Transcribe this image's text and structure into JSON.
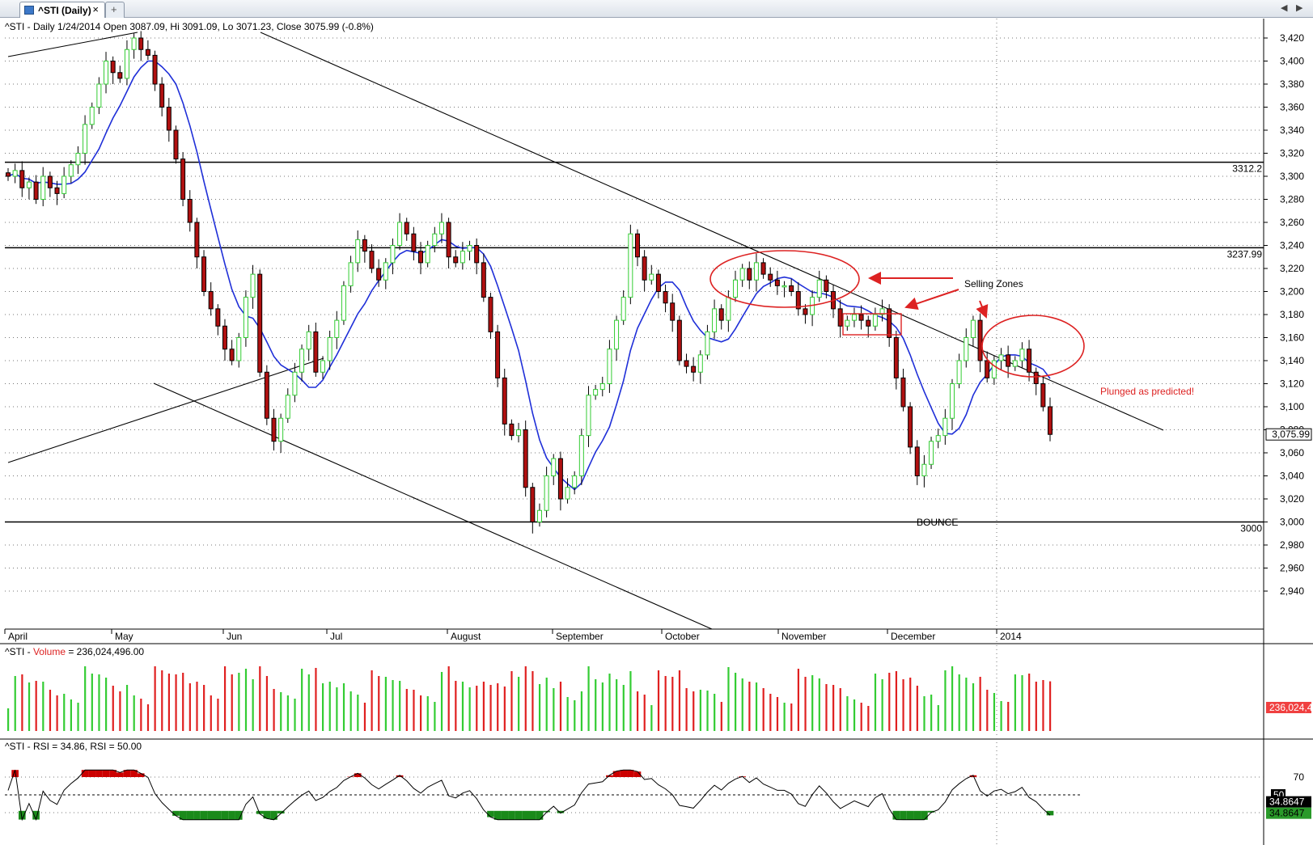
{
  "window": {
    "tab_label": "^STI (Daily)",
    "close_glyph": "×",
    "new_tab_glyph": "+",
    "nav_left": "◀",
    "nav_right": "▶"
  },
  "colors": {
    "up": "#33cc33",
    "down": "#b01010",
    "ma": "#1f2fd8",
    "annot": "#dd2222",
    "hline": "#000000",
    "rsi_fill": "#1a8a1a",
    "rsi_over": "#cc0000"
  },
  "price_panel": {
    "header": "^STI - Daily 1/24/2014 Open 3087.09, Hi 3091.09, Lo 3071.23, Close 3075.99 (-0.8%)",
    "ytick_labels": [
      "3,420",
      "3,400",
      "3,380",
      "3,360",
      "3,340",
      "3,320",
      "3,300",
      "3,280",
      "3,260",
      "3,240",
      "3,220",
      "3,200",
      "3,180",
      "3,160",
      "3,140",
      "3,120",
      "3,100",
      "3,080",
      "3,060",
      "3,040",
      "3,020",
      "3,000",
      "2,980",
      "2,960",
      "2,940"
    ],
    "last_price_label": "3,075.99",
    "month_labels": [
      "April",
      "May",
      "Jun",
      "Jul",
      "August",
      "September",
      "October",
      "November",
      "December",
      "2014"
    ],
    "hlines": [
      {
        "value": 3312.2,
        "label": "3312.2"
      },
      {
        "value": 3237.99,
        "label": "3237.99"
      },
      {
        "value": 3000,
        "label": "3000"
      }
    ],
    "annotations": {
      "selling_zones": "Selling Zones",
      "bounce": "BOUNCE",
      "plunged": "Plunged as predicted!"
    }
  },
  "volume_panel": {
    "header_prefix": "^STI - ",
    "header_series": "Volume",
    "header_value": " = 236,024,496.00",
    "last_label": "236,024,4"
  },
  "rsi_panel": {
    "header": "^STI - RSI = 34.86, RSI = 50.00",
    "tick_70": "70",
    "box_50": "50",
    "last_value": "34.8647",
    "last_value2": "34.8647"
  },
  "chart_data": {
    "type": "candlestick",
    "title": "^STI - Daily",
    "ylim": [
      2930,
      3430
    ],
    "ma_series_name": "Moving Average",
    "series": [
      {
        "name": "^STI",
        "closes_path": [
          {
            "m": "Apr",
            "c": 3300
          },
          {
            "m": "Apr",
            "c": 3305
          },
          {
            "m": "Apr",
            "c": 3290
          },
          {
            "m": "Apr",
            "c": 3295
          },
          {
            "m": "Apr",
            "c": 3280
          },
          {
            "m": "Apr",
            "c": 3300
          },
          {
            "m": "Apr",
            "c": 3290
          },
          {
            "m": "Apr",
            "c": 3285
          },
          {
            "m": "Apr",
            "c": 3300
          },
          {
            "m": "Apr",
            "c": 3310
          },
          {
            "m": "Apr",
            "c": 3320
          },
          {
            "m": "May",
            "c": 3345
          },
          {
            "m": "May",
            "c": 3360
          },
          {
            "m": "May",
            "c": 3380
          },
          {
            "m": "May",
            "c": 3400
          },
          {
            "m": "May",
            "c": 3390
          },
          {
            "m": "May",
            "c": 3385
          },
          {
            "m": "May",
            "c": 3410
          },
          {
            "m": "May",
            "c": 3420
          },
          {
            "m": "May",
            "c": 3410
          },
          {
            "m": "May",
            "c": 3405
          },
          {
            "m": "May",
            "c": 3380
          },
          {
            "m": "May",
            "c": 3360
          },
          {
            "m": "May",
            "c": 3340
          },
          {
            "m": "May",
            "c": 3315
          },
          {
            "m": "Jun",
            "c": 3280
          },
          {
            "m": "Jun",
            "c": 3260
          },
          {
            "m": "Jun",
            "c": 3230
          },
          {
            "m": "Jun",
            "c": 3200
          },
          {
            "m": "Jun",
            "c": 3185
          },
          {
            "m": "Jun",
            "c": 3170
          },
          {
            "m": "Jun",
            "c": 3150
          },
          {
            "m": "Jun",
            "c": 3140
          },
          {
            "m": "Jun",
            "c": 3160
          },
          {
            "m": "Jun",
            "c": 3195
          },
          {
            "m": "Jun",
            "c": 3215
          },
          {
            "m": "Jun",
            "c": 3130
          },
          {
            "m": "Jun",
            "c": 3090
          },
          {
            "m": "Jun",
            "c": 3070
          },
          {
            "m": "Jun",
            "c": 3090
          },
          {
            "m": "Jun",
            "c": 3110
          },
          {
            "m": "Jun",
            "c": 3130
          },
          {
            "m": "Jul",
            "c": 3150
          },
          {
            "m": "Jul",
            "c": 3165
          },
          {
            "m": "Jul",
            "c": 3130
          },
          {
            "m": "Jul",
            "c": 3140
          },
          {
            "m": "Jul",
            "c": 3160
          },
          {
            "m": "Jul",
            "c": 3175
          },
          {
            "m": "Jul",
            "c": 3205
          },
          {
            "m": "Jul",
            "c": 3225
          },
          {
            "m": "Jul",
            "c": 3245
          },
          {
            "m": "Jul",
            "c": 3235
          },
          {
            "m": "Jul",
            "c": 3220
          },
          {
            "m": "Jul",
            "c": 3210
          },
          {
            "m": "Jul",
            "c": 3225
          },
          {
            "m": "Jul",
            "c": 3240
          },
          {
            "m": "Jul",
            "c": 3260
          },
          {
            "m": "Jul",
            "c": 3250
          },
          {
            "m": "Jul",
            "c": 3235
          },
          {
            "m": "Aug",
            "c": 3225
          },
          {
            "m": "Aug",
            "c": 3240
          },
          {
            "m": "Aug",
            "c": 3250
          },
          {
            "m": "Aug",
            "c": 3260
          },
          {
            "m": "Aug",
            "c": 3230
          },
          {
            "m": "Aug",
            "c": 3225
          },
          {
            "m": "Aug",
            "c": 3235
          },
          {
            "m": "Aug",
            "c": 3240
          },
          {
            "m": "Aug",
            "c": 3225
          },
          {
            "m": "Aug",
            "c": 3195
          },
          {
            "m": "Aug",
            "c": 3165
          },
          {
            "m": "Aug",
            "c": 3125
          },
          {
            "m": "Aug",
            "c": 3085
          },
          {
            "m": "Aug",
            "c": 3075
          },
          {
            "m": "Aug",
            "c": 3080
          },
          {
            "m": "Aug",
            "c": 3030
          },
          {
            "m": "Aug",
            "c": 3000
          },
          {
            "m": "Sep",
            "c": 3010
          },
          {
            "m": "Sep",
            "c": 3040
          },
          {
            "m": "Sep",
            "c": 3055
          },
          {
            "m": "Sep",
            "c": 3020
          },
          {
            "m": "Sep",
            "c": 3030
          },
          {
            "m": "Sep",
            "c": 3040
          },
          {
            "m": "Sep",
            "c": 3075
          },
          {
            "m": "Sep",
            "c": 3110
          },
          {
            "m": "Sep",
            "c": 3115
          },
          {
            "m": "Sep",
            "c": 3120
          },
          {
            "m": "Sep",
            "c": 3150
          },
          {
            "m": "Sep",
            "c": 3175
          },
          {
            "m": "Sep",
            "c": 3195
          },
          {
            "m": "Sep",
            "c": 3250
          },
          {
            "m": "Sep",
            "c": 3230
          },
          {
            "m": "Sep",
            "c": 3210
          },
          {
            "m": "Sep",
            "c": 3215
          },
          {
            "m": "Sep",
            "c": 3200
          },
          {
            "m": "Oct",
            "c": 3190
          },
          {
            "m": "Oct",
            "c": 3175
          },
          {
            "m": "Oct",
            "c": 3140
          },
          {
            "m": "Oct",
            "c": 3135
          },
          {
            "m": "Oct",
            "c": 3130
          },
          {
            "m": "Oct",
            "c": 3145
          },
          {
            "m": "Oct",
            "c": 3165
          },
          {
            "m": "Oct",
            "c": 3185
          },
          {
            "m": "Oct",
            "c": 3175
          },
          {
            "m": "Oct",
            "c": 3195
          },
          {
            "m": "Oct",
            "c": 3210
          },
          {
            "m": "Oct",
            "c": 3220
          },
          {
            "m": "Oct",
            "c": 3210
          },
          {
            "m": "Oct",
            "c": 3225
          },
          {
            "m": "Oct",
            "c": 3215
          },
          {
            "m": "Nov",
            "c": 3210
          },
          {
            "m": "Nov",
            "c": 3205
          },
          {
            "m": "Nov",
            "c": 3205
          },
          {
            "m": "Nov",
            "c": 3200
          },
          {
            "m": "Nov",
            "c": 3185
          },
          {
            "m": "Nov",
            "c": 3180
          },
          {
            "m": "Nov",
            "c": 3195
          },
          {
            "m": "Nov",
            "c": 3210
          },
          {
            "m": "Nov",
            "c": 3200
          },
          {
            "m": "Nov",
            "c": 3185
          },
          {
            "m": "Nov",
            "c": 3170
          },
          {
            "m": "Nov",
            "c": 3175
          },
          {
            "m": "Nov",
            "c": 3180
          },
          {
            "m": "Nov",
            "c": 3175
          },
          {
            "m": "Nov",
            "c": 3170
          },
          {
            "m": "Nov",
            "c": 3180
          },
          {
            "m": "Dec",
            "c": 3185
          },
          {
            "m": "Dec",
            "c": 3160
          },
          {
            "m": "Dec",
            "c": 3125
          },
          {
            "m": "Dec",
            "c": 3100
          },
          {
            "m": "Dec",
            "c": 3065
          },
          {
            "m": "Dec",
            "c": 3040
          },
          {
            "m": "Dec",
            "c": 3050
          },
          {
            "m": "Dec",
            "c": 3070
          },
          {
            "m": "Dec",
            "c": 3075
          },
          {
            "m": "Dec",
            "c": 3090
          },
          {
            "m": "Dec",
            "c": 3120
          },
          {
            "m": "Dec",
            "c": 3140
          },
          {
            "m": "Dec",
            "c": 3160
          },
          {
            "m": "2014",
            "c": 3175
          },
          {
            "m": "2014",
            "c": 3140
          },
          {
            "m": "2014",
            "c": 3125
          },
          {
            "m": "2014",
            "c": 3140
          },
          {
            "m": "2014",
            "c": 3145
          },
          {
            "m": "2014",
            "c": 3135
          },
          {
            "m": "2014",
            "c": 3140
          },
          {
            "m": "2014",
            "c": 3150
          },
          {
            "m": "2014",
            "c": 3130
          },
          {
            "m": "2014",
            "c": 3120
          },
          {
            "m": "2014",
            "c": 3100
          },
          {
            "m": "2014",
            "c": 3075.99
          }
        ]
      }
    ],
    "volume_last": 236024496,
    "rsi_last": 34.86,
    "rsi_ref": 50
  }
}
